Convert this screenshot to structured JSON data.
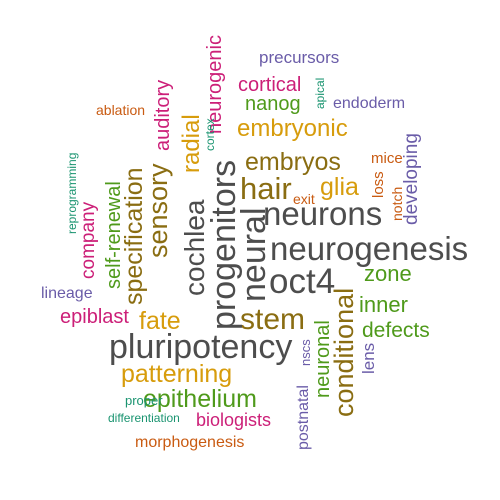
{
  "colors": {
    "gray": "#4d4d4d",
    "green": "#4f9a1b",
    "orange": "#c95b12",
    "gold": "#d79c0c",
    "olive": "#8a6d12",
    "purple": "#6a5ca8",
    "magenta": "#cc1f78",
    "teal": "#1a9470"
  },
  "words": {
    "precursors": "precursors",
    "neurogenic": "neurogenic",
    "cortical": "cortical",
    "apical": "apical",
    "nanog": "nanog",
    "endoderm": "endoderm",
    "ablation": "ablation",
    "cortex": "cortex",
    "auditory": "auditory",
    "embryonic": "embryonic",
    "radial": "radial",
    "developing": "developing",
    "reprogramming": "reprogramming",
    "self_renewal": "self-renewal",
    "specification": "specification",
    "sensory": "sensory",
    "progenitors": "progenitors",
    "embryos": "embryos",
    "mice": "mice",
    "loss": "loss",
    "notch": "notch",
    "hair": "hair",
    "glia": "glia",
    "exit": "exit",
    "company": "company",
    "cochlea": "cochlea",
    "neural": "neural",
    "neurons": "neurons",
    "neurogenesis": "neurogenesis",
    "oct4": "oct4",
    "zone": "zone",
    "lineage": "lineage",
    "conditional": "conditional",
    "inner": "inner",
    "epiblast": "epiblast",
    "fate": "fate",
    "stem": "stem",
    "defects": "defects",
    "pluripotency": "pluripotency",
    "nscs": "nscs",
    "neuronal": "neuronal",
    "lens": "lens",
    "patterning": "patterning",
    "postnatal": "postnatal",
    "epithelium": "epithelium",
    "proper": "proper",
    "differentiation": "differentiation",
    "biologists": "biologists",
    "morphogenesis": "morphogenesis"
  }
}
